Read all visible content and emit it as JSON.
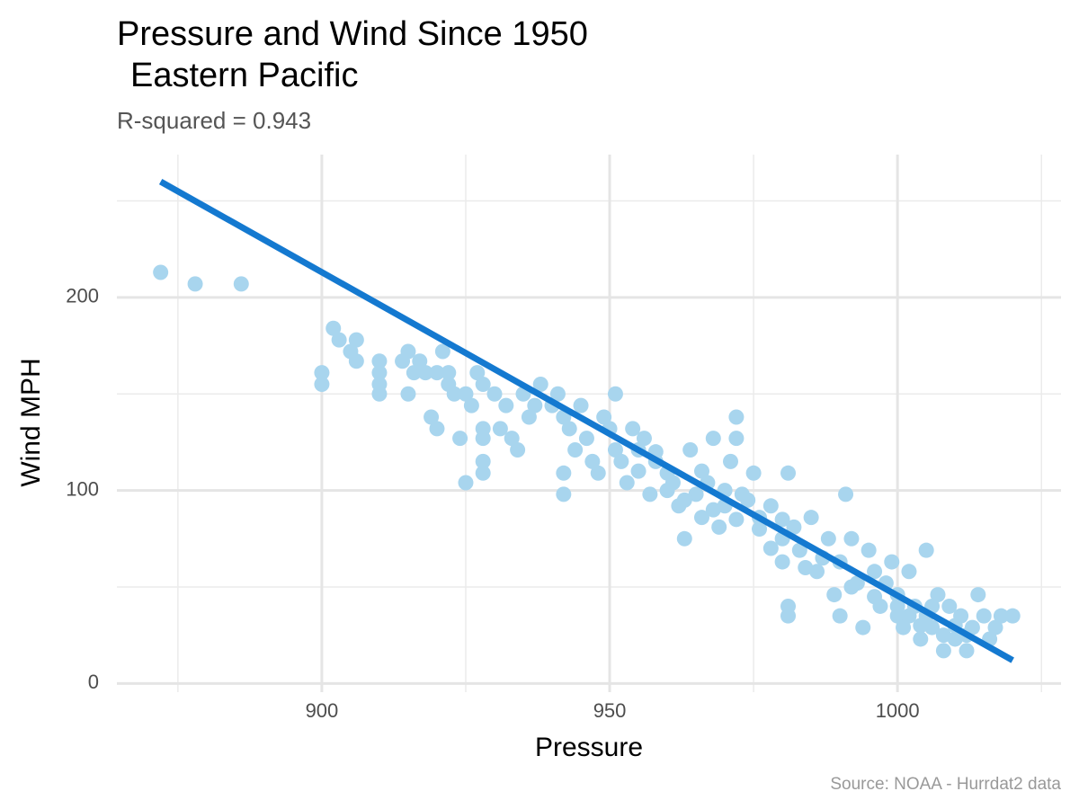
{
  "chart_data": {
    "type": "scatter",
    "title": [
      "Pressure and Wind Since 1950",
      "Eastern Pacific"
    ],
    "subtitle": "R-squared =  0.943",
    "caption": "Source: NOAA - Hurrdat2 data",
    "x_label": "Pressure",
    "y_label": "Wind MPH",
    "xlim": [
      864.4,
      1028.4
    ],
    "ylim": [
      -4.5,
      274
    ],
    "xticks": [
      900,
      950,
      1000
    ],
    "yticks": [
      0,
      100,
      200
    ],
    "x_minor_grid": [
      875,
      925,
      975,
      1025
    ],
    "y_minor_grid": [
      50,
      150,
      250
    ],
    "grid": true,
    "color": "#a8d5ee",
    "x": [
      872,
      878,
      886,
      902,
      903,
      905,
      906,
      906,
      900,
      900,
      910,
      910,
      910,
      910,
      914,
      915,
      915,
      916,
      917,
      918,
      920,
      921,
      922,
      922,
      920,
      919,
      923,
      924,
      925,
      925,
      926,
      927,
      928,
      928,
      928,
      928,
      928,
      930,
      931,
      932,
      933,
      934,
      935,
      936,
      937,
      938,
      940,
      941,
      942,
      942,
      942,
      943,
      944,
      945,
      946,
      947,
      948,
      949,
      950,
      951,
      951,
      952,
      953,
      954,
      955,
      956,
      957,
      958,
      960,
      961,
      962,
      963,
      964,
      965,
      966,
      967,
      968,
      969,
      970,
      971,
      972,
      972,
      973,
      975,
      976,
      978,
      980,
      980,
      981,
      981,
      981,
      982,
      983,
      985,
      986,
      988,
      989,
      990,
      990,
      991,
      992,
      993,
      994,
      995,
      996,
      997,
      998,
      999,
      1000,
      1000,
      1001,
      1002,
      1003,
      1004,
      1005,
      1005,
      1006,
      1007,
      1008,
      1009,
      1010,
      1011,
      1012,
      1013,
      1014,
      1015,
      1016,
      1017,
      1018,
      1020,
      955,
      958,
      960,
      963,
      966,
      968,
      970,
      972,
      974,
      976,
      978,
      980,
      984,
      987,
      992,
      996,
      1000,
      1004,
      1008,
      1012,
      1002,
      1006,
      1010
    ],
    "y": [
      213,
      207,
      207,
      184,
      178,
      172,
      178,
      167,
      161,
      155,
      167,
      161,
      155,
      150,
      167,
      172,
      150,
      161,
      167,
      161,
      161,
      172,
      161,
      155,
      132,
      138,
      150,
      127,
      104,
      150,
      144,
      161,
      155,
      132,
      127,
      115,
      109,
      150,
      132,
      144,
      127,
      121,
      150,
      138,
      144,
      155,
      144,
      150,
      138,
      98,
      109,
      132,
      121,
      144,
      127,
      115,
      109,
      138,
      132,
      121,
      150,
      115,
      104,
      132,
      121,
      127,
      98,
      115,
      109,
      104,
      92,
      75,
      121,
      98,
      86,
      104,
      127,
      81,
      92,
      115,
      138,
      127,
      98,
      109,
      86,
      92,
      75,
      63,
      109,
      40,
      35,
      81,
      69,
      86,
      58,
      75,
      46,
      63,
      35,
      98,
      75,
      52,
      29,
      69,
      58,
      40,
      52,
      63,
      46,
      35,
      29,
      58,
      40,
      23,
      69,
      35,
      29,
      46,
      17,
      40,
      23,
      35,
      17,
      29,
      46,
      35,
      23,
      29,
      35,
      35,
      110,
      120,
      100,
      95,
      110,
      90,
      100,
      85,
      95,
      80,
      70,
      85,
      60,
      65,
      50,
      45,
      40,
      30,
      25,
      25,
      35,
      40,
      30
    ],
    "trend": {
      "color": "#1479d0",
      "x": [
        872,
        1020
      ],
      "y": [
        260,
        12
      ]
    }
  }
}
